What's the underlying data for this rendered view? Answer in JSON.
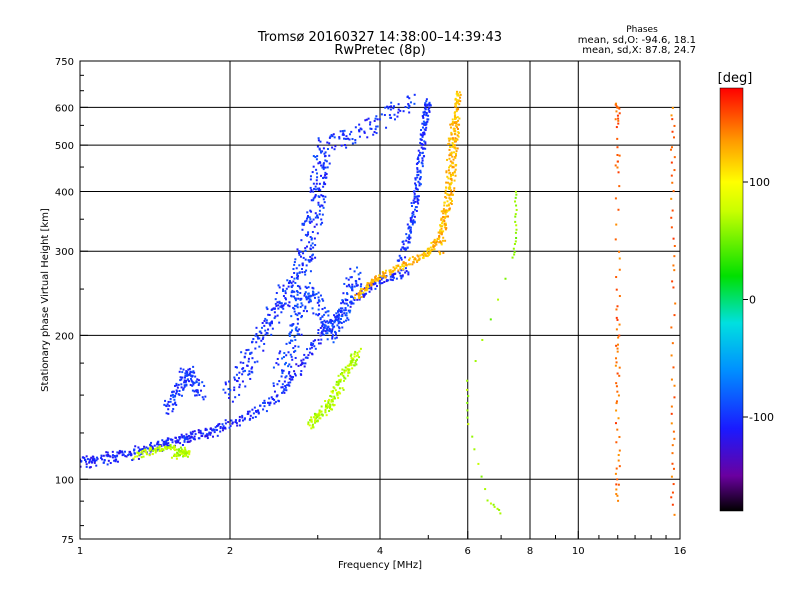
{
  "header": {
    "title_line1": "Tromsø 20160327 14:38:00–14:39:43",
    "title_line2": "RwPretec (8p)",
    "phases_label": "Phases",
    "phases_o": "mean, sd,O: -94.6, 18.1",
    "phases_x": "mean, sd,X: 87.8, 24.7"
  },
  "colorbar": {
    "unit_label": "[deg]",
    "range": [
      -180,
      180
    ],
    "ticks": [
      {
        "value": 100,
        "label": "100"
      },
      {
        "value": 0,
        "label": "0"
      },
      {
        "value": -100,
        "label": "-100"
      }
    ],
    "stops": [
      {
        "value": -180,
        "color": "#000000"
      },
      {
        "value": -150,
        "color": "#6a00a0"
      },
      {
        "value": -110,
        "color": "#1a1aff"
      },
      {
        "value": -60,
        "color": "#0090ff"
      },
      {
        "value": -20,
        "color": "#00e0e0"
      },
      {
        "value": 20,
        "color": "#00e000"
      },
      {
        "value": 75,
        "color": "#c8ff00"
      },
      {
        "value": 100,
        "color": "#ffff00"
      },
      {
        "value": 135,
        "color": "#ff9a00"
      },
      {
        "value": 180,
        "color": "#ff0000"
      }
    ]
  },
  "chart_data": {
    "type": "scatter",
    "title": "Tromsø 20160327 14:38:00–14:39:43",
    "subtitle": "RwPretec (8p)",
    "xlabel": "Frequency [MHz]",
    "ylabel": "Stationary phase Virtual Height [km]",
    "x_scale": "log",
    "y_scale": "log",
    "xlim": [
      1,
      16
    ],
    "ylim": [
      75,
      750
    ],
    "x_ticks": [
      {
        "value": 1,
        "label": "1"
      },
      {
        "value": 2,
        "label": "2"
      },
      {
        "value": 4,
        "label": "4"
      },
      {
        "value": 6,
        "label": "6"
      },
      {
        "value": 8,
        "label": "8"
      },
      {
        "value": 10,
        "label": "10"
      },
      {
        "value": 16,
        "label": "16"
      }
    ],
    "y_ticks": [
      {
        "value": 75,
        "label": "75"
      },
      {
        "value": 100,
        "label": "100"
      },
      {
        "value": 200,
        "label": "200"
      },
      {
        "value": 300,
        "label": "300"
      },
      {
        "value": 400,
        "label": "400"
      },
      {
        "value": 500,
        "label": "500"
      },
      {
        "value": 600,
        "label": "600"
      },
      {
        "value": 750,
        "label": "750"
      }
    ],
    "x_grid": [
      1,
      2,
      4,
      6,
      8,
      10,
      16
    ],
    "y_grid": [
      100,
      200,
      300,
      400,
      500,
      600
    ],
    "grid": true,
    "color_variable": "phase [deg]",
    "traces": [
      {
        "phase": -105,
        "spread": 0.04,
        "points": [
          [
            1.0,
            110
          ],
          [
            1.1,
            111
          ],
          [
            1.25,
            114
          ],
          [
            1.4,
            117
          ],
          [
            1.55,
            121
          ],
          [
            1.7,
            124
          ],
          [
            1.9,
            128
          ],
          [
            2.1,
            133
          ],
          [
            2.3,
            140
          ],
          [
            2.5,
            150
          ],
          [
            2.7,
            165
          ],
          [
            2.9,
            185
          ],
          [
            3.1,
            205
          ],
          [
            3.3,
            220
          ],
          [
            3.6,
            240
          ],
          [
            3.9,
            255
          ],
          [
            4.2,
            265
          ],
          [
            4.5,
            272
          ]
        ]
      },
      {
        "phase": -110,
        "spread": 0.05,
        "points": [
          [
            1.0,
            108
          ],
          [
            1.15,
            110
          ],
          [
            1.3,
            113
          ],
          [
            1.5,
            118
          ],
          [
            1.7,
            123
          ],
          [
            1.9,
            127
          ]
        ]
      },
      {
        "phase": -100,
        "spread": 0.08,
        "points": [
          [
            2.0,
            150
          ],
          [
            2.1,
            165
          ],
          [
            2.2,
            180
          ],
          [
            2.3,
            200
          ],
          [
            2.4,
            215
          ],
          [
            2.5,
            230
          ],
          [
            2.6,
            245
          ],
          [
            2.7,
            260
          ],
          [
            2.8,
            280
          ],
          [
            2.85,
            300
          ],
          [
            2.9,
            330
          ],
          [
            2.95,
            360
          ],
          [
            3.0,
            390
          ],
          [
            3.0,
            420
          ],
          [
            3.05,
            460
          ],
          [
            3.1,
            500
          ],
          [
            3.4,
            515
          ],
          [
            3.8,
            545
          ],
          [
            4.2,
            585
          ],
          [
            4.6,
            615
          ]
        ]
      },
      {
        "phase": -95,
        "spread": 0.07,
        "points": [
          [
            2.5,
            160
          ],
          [
            2.6,
            180
          ],
          [
            2.7,
            200
          ],
          [
            2.75,
            220
          ],
          [
            2.8,
            240
          ],
          [
            2.9,
            250
          ],
          [
            3.0,
            230
          ],
          [
            3.1,
            210
          ],
          [
            3.2,
            200
          ],
          [
            3.3,
            215
          ],
          [
            3.4,
            230
          ],
          [
            3.5,
            250
          ],
          [
            3.6,
            270
          ]
        ]
      },
      {
        "phase": -100,
        "spread": 0.03,
        "points": [
          [
            4.4,
            290
          ],
          [
            4.55,
            320
          ],
          [
            4.65,
            350
          ],
          [
            4.72,
            390
          ],
          [
            4.78,
            430
          ],
          [
            4.85,
            480
          ],
          [
            4.9,
            530
          ],
          [
            4.95,
            580
          ],
          [
            5.0,
            615
          ]
        ]
      },
      {
        "phase": -100,
        "spread": 0.05,
        "points": [
          [
            1.5,
            140
          ],
          [
            1.55,
            150
          ],
          [
            1.6,
            160
          ],
          [
            1.65,
            170
          ],
          [
            1.7,
            160
          ],
          [
            1.75,
            150
          ]
        ]
      },
      {
        "phase": 70,
        "spread": 0.03,
        "points": [
          [
            1.3,
            112
          ],
          [
            1.4,
            115
          ],
          [
            1.5,
            117
          ],
          [
            1.6,
            115
          ],
          [
            1.65,
            113
          ],
          [
            1.55,
            112
          ]
        ]
      },
      {
        "phase": 70,
        "spread": 0.04,
        "points": [
          [
            2.9,
            130
          ],
          [
            3.0,
            135
          ],
          [
            3.1,
            140
          ],
          [
            3.2,
            145
          ],
          [
            3.3,
            155
          ],
          [
            3.4,
            165
          ],
          [
            3.5,
            175
          ],
          [
            3.6,
            185
          ]
        ]
      },
      {
        "phase": 125,
        "spread": 0.025,
        "points": [
          [
            3.6,
            240
          ],
          [
            3.8,
            255
          ],
          [
            4.0,
            265
          ],
          [
            4.3,
            275
          ],
          [
            4.6,
            285
          ],
          [
            4.9,
            295
          ],
          [
            5.1,
            305
          ],
          [
            5.3,
            330
          ],
          [
            5.5,
            370
          ],
          [
            5.6,
            420
          ],
          [
            5.65,
            480
          ],
          [
            5.7,
            540
          ],
          [
            5.72,
            600
          ],
          [
            5.75,
            640
          ]
        ]
      },
      {
        "phase": 125,
        "spread": 0.03,
        "points": [
          [
            5.3,
            300
          ],
          [
            5.4,
            360
          ],
          [
            5.5,
            420
          ],
          [
            5.55,
            500
          ],
          [
            5.6,
            560
          ]
        ]
      },
      {
        "phase": 150,
        "spread": 0.02,
        "points": [
          [
            12,
            560
          ],
          [
            12,
            600
          ],
          [
            12,
            610
          ],
          [
            12,
            480
          ],
          [
            12,
            440
          ],
          [
            12,
            300
          ],
          [
            12,
            230
          ],
          [
            12,
            200
          ],
          [
            12,
            180
          ],
          [
            12,
            160
          ],
          [
            12,
            140
          ],
          [
            12,
            115
          ],
          [
            12,
            100
          ],
          [
            12,
            90
          ]
        ]
      },
      {
        "phase": 150,
        "spread": 0.02,
        "points": [
          [
            15.5,
            600
          ],
          [
            15.5,
            500
          ],
          [
            15.5,
            420
          ],
          [
            15.5,
            320
          ],
          [
            15.5,
            250
          ],
          [
            15.5,
            170
          ],
          [
            15.5,
            130
          ],
          [
            15.5,
            105
          ],
          [
            15.5,
            85
          ]
        ]
      },
      {
        "phase": 60,
        "spread": 0.01,
        "points": [
          [
            7.5,
            400
          ],
          [
            7.5,
            360
          ],
          [
            7.5,
            320
          ],
          [
            7.4,
            290
          ],
          [
            6.0,
            160
          ],
          [
            6.0,
            130
          ],
          [
            6.6,
            90
          ],
          [
            7.0,
            85
          ]
        ]
      }
    ]
  }
}
